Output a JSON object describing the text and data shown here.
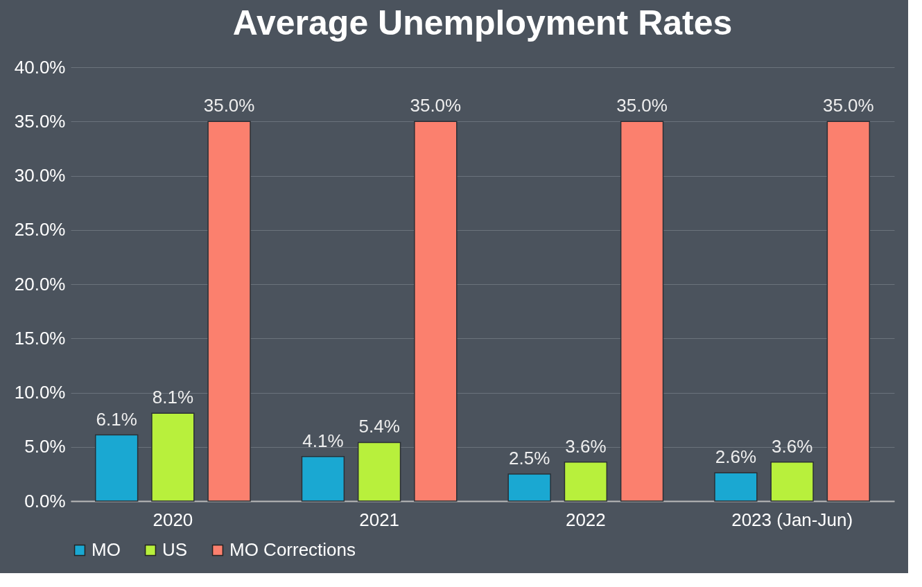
{
  "chart_data": {
    "type": "bar",
    "title": "Average Unemployment Rates",
    "categories": [
      "2020",
      "2021",
      "2022",
      "2023 (Jan-Jun)"
    ],
    "series": [
      {
        "name": "MO",
        "color": "#1aa8d2",
        "values": [
          6.1,
          4.1,
          2.5,
          2.6
        ],
        "value_labels": [
          "6.1%",
          "4.1%",
          "2.5%",
          "2.6%"
        ]
      },
      {
        "name": "US",
        "color": "#b8f03c",
        "values": [
          8.1,
          5.4,
          3.6,
          3.6
        ],
        "value_labels": [
          "8.1%",
          "5.4%",
          "3.6%",
          "3.6%"
        ]
      },
      {
        "name": "MO Corrections",
        "color": "#fb806e",
        "values": [
          35.0,
          35.0,
          35.0,
          35.0
        ],
        "value_labels": [
          "35.0%",
          "35.0%",
          "35.0%",
          "35.0%"
        ]
      }
    ],
    "ylim": [
      0,
      40
    ],
    "yticks": [
      {
        "value": 0,
        "label": "0.0%"
      },
      {
        "value": 5,
        "label": "5.0%"
      },
      {
        "value": 10,
        "label": "10.0%"
      },
      {
        "value": 15,
        "label": "15.0%"
      },
      {
        "value": 20,
        "label": "20.0%"
      },
      {
        "value": 25,
        "label": "25.0%"
      },
      {
        "value": 30,
        "label": "30.0%"
      },
      {
        "value": 35,
        "label": "35.0%"
      },
      {
        "value": 40,
        "label": "40.0%"
      }
    ],
    "grid": "y",
    "legend": "bottom"
  }
}
